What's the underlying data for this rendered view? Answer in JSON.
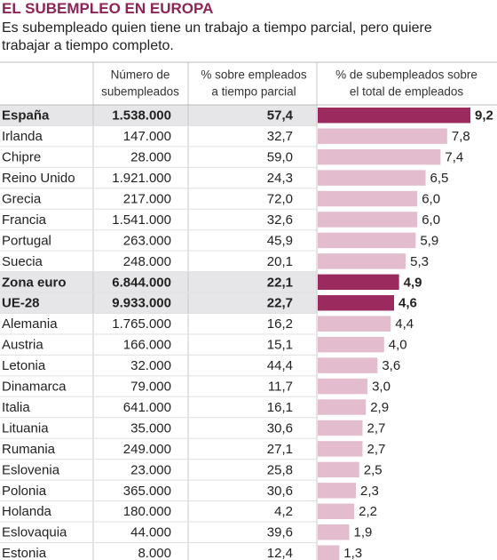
{
  "header": {
    "title": "EL SUBEMPLEO EN EUROPA",
    "subtitle": "Es subempleado quien tiene un trabajo a tiempo parcial, pero quiere trabajar a tiempo completo."
  },
  "table": {
    "columns": [
      [
        "Número de",
        "subempleados"
      ],
      [
        "% sobre empleados",
        "a tiempo parcial"
      ],
      [
        "% de subempleados sobre",
        "el total de empleados"
      ]
    ],
    "bar_colors": {
      "normal": "#e3bccd",
      "highlight": "#9b2a5e"
    },
    "rows": [
      {
        "name": "España",
        "count": "1.538.000",
        "pct": "57,4",
        "share": {
          "value": 9.2,
          "label": "9,2"
        },
        "highlight": true
      },
      {
        "name": "Irlanda",
        "count": "147.000",
        "pct": "32,7",
        "share": {
          "value": 7.8,
          "label": "7,8"
        },
        "highlight": false
      },
      {
        "name": "Chipre",
        "count": "28.000",
        "pct": "59,0",
        "share": {
          "value": 7.4,
          "label": "7,4"
        },
        "highlight": false
      },
      {
        "name": "Reino Unido",
        "count": "1.921.000",
        "pct": "24,3",
        "share": {
          "value": 6.5,
          "label": "6,5"
        },
        "highlight": false
      },
      {
        "name": "Grecia",
        "count": "217.000",
        "pct": "72,0",
        "share": {
          "value": 6.0,
          "label": "6,0"
        },
        "highlight": false
      },
      {
        "name": "Francia",
        "count": "1.541.000",
        "pct": "32,6",
        "share": {
          "value": 6.0,
          "label": "6,0"
        },
        "highlight": false
      },
      {
        "name": "Portugal",
        "count": "263.000",
        "pct": "45,9",
        "share": {
          "value": 5.9,
          "label": "5,9"
        },
        "highlight": false
      },
      {
        "name": "Suecia",
        "count": "248.000",
        "pct": "20,1",
        "share": {
          "value": 5.3,
          "label": "5,3"
        },
        "highlight": false
      },
      {
        "name": "Zona euro",
        "count": "6.844.000",
        "pct": "22,1",
        "share": {
          "value": 4.9,
          "label": "4,9"
        },
        "highlight": true
      },
      {
        "name": "UE-28",
        "count": "9.933.000",
        "pct": "22,7",
        "share": {
          "value": 4.6,
          "label": "4,6"
        },
        "highlight": true
      },
      {
        "name": "Alemania",
        "count": "1.765.000",
        "pct": "16,2",
        "share": {
          "value": 4.4,
          "label": "4,4"
        },
        "highlight": false
      },
      {
        "name": "Austria",
        "count": "166.000",
        "pct": "15,1",
        "share": {
          "value": 4.0,
          "label": "4,0"
        },
        "highlight": false
      },
      {
        "name": "Letonia",
        "count": "32.000",
        "pct": "44,4",
        "share": {
          "value": 3.6,
          "label": "3,6"
        },
        "highlight": false
      },
      {
        "name": "Dinamarca",
        "count": "79.000",
        "pct": "11,7",
        "share": {
          "value": 3.0,
          "label": "3,0"
        },
        "highlight": false
      },
      {
        "name": "Italia",
        "count": "641.000",
        "pct": "16,1",
        "share": {
          "value": 2.9,
          "label": "2,9"
        },
        "highlight": false
      },
      {
        "name": "Lituania",
        "count": "35.000",
        "pct": "30,6",
        "share": {
          "value": 2.7,
          "label": "2,7"
        },
        "highlight": false
      },
      {
        "name": "Rumania",
        "count": "249.000",
        "pct": "27,1",
        "share": {
          "value": 2.7,
          "label": "2,7"
        },
        "highlight": false
      },
      {
        "name": "Eslovenia",
        "count": "23.000",
        "pct": "25,8",
        "share": {
          "value": 2.5,
          "label": "2,5"
        },
        "highlight": false
      },
      {
        "name": "Polonia",
        "count": "365.000",
        "pct": "30,6",
        "share": {
          "value": 2.3,
          "label": "2,3"
        },
        "highlight": false
      },
      {
        "name": "Holanda",
        "count": "180.000",
        "pct": "4,2",
        "share": {
          "value": 2.2,
          "label": "2,2"
        },
        "highlight": false
      },
      {
        "name": "Eslovaquia",
        "count": "44.000",
        "pct": "39,6",
        "share": {
          "value": 1.9,
          "label": "1,9"
        },
        "highlight": false
      },
      {
        "name": "Estonia",
        "count": "8.000",
        "pct": "12,4",
        "share": {
          "value": 1.3,
          "label": "1,3"
        },
        "highlight": false
      }
    ]
  }
}
